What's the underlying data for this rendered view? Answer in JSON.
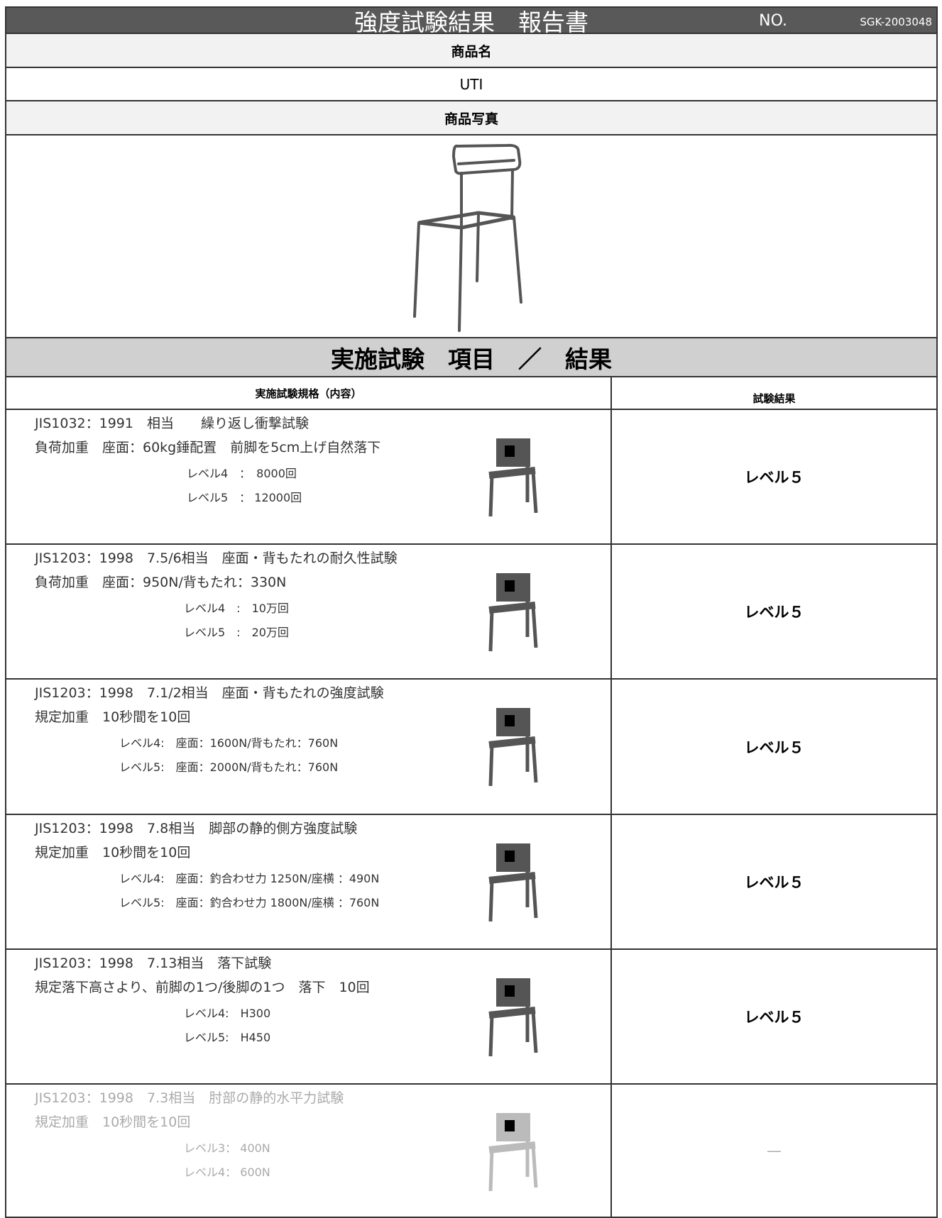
{
  "header": {
    "title": "強度試験結果　報告書",
    "no_label": "NO.",
    "no": "SGK-2003048"
  },
  "product": {
    "name_label": "商品名",
    "name": "UTI",
    "photo_label": "商品写真"
  },
  "tests_section": {
    "title": "実施試験　項目　／　結果",
    "col_standard": "実施試験規格（内容）",
    "col_result": "試験結果",
    "rows": [
      {
        "standard": "JIS1032：1991　相当　　繰り返し衝撃試験",
        "load": "負荷加重　座面：60kg錘配置　前脚を5cm上げ自然落下",
        "levels": [
          "レベル4　：　8000回",
          "レベル5　：  12000回"
        ],
        "result": "レベル５"
      },
      {
        "standard": "JIS1203：1998　7.5/6相当　座面・背もたれの耐久性試験",
        "load": "負荷加重　座面：950N/背もたれ：330N",
        "levels": [
          "レベル4　:　10万回",
          "レベル5　:　20万回"
        ],
        "result": "レベル５"
      },
      {
        "standard": "JIS1203：1998　7.1/2相当　座面・背もたれの強度試験",
        "load": "規定加重　10秒間を10回",
        "levels": [
          "レベル4:　座面：1600N/背もたれ：760N",
          "レベル5:　座面：2000N/背もたれ：760N"
        ],
        "result": "レベル５"
      },
      {
        "standard": "JIS1203：1998　7.8相当　脚部の静的側方強度試験",
        "load": "規定加重　10秒間を10回",
        "levels": [
          "レベル4:　座面：釣合わせ力 1250N/座横 ：490N",
          "レベル5:　座面：釣合わせ力 1800N/座横 ：760N"
        ],
        "result": "レベル５"
      },
      {
        "standard": "JIS1203：1998　7.13相当　落下試験",
        "load": "規定落下高さより、前脚の1つ/後脚の1つ　落下　10回",
        "levels": [
          "レベル4:　H300",
          "レベル5:　H450"
        ],
        "result": "レベル５"
      },
      {
        "standard": "JIS1203：1998　7.3相当　肘部の静的水平力試験",
        "load": "規定加重　10秒間を10回",
        "levels": [
          "レベル3：  400N",
          "レベル4：  600N"
        ],
        "result": "—"
      }
    ]
  }
}
